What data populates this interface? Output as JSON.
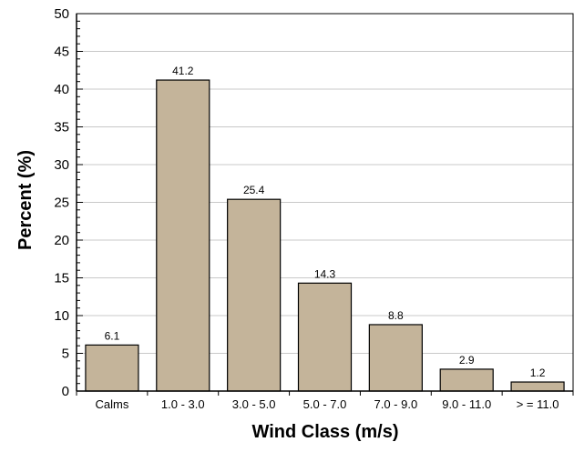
{
  "chart_data": {
    "type": "bar",
    "title": "",
    "xlabel": "Wind Class (m/s)",
    "ylabel": "Percent (%)",
    "categories": [
      "Calms",
      "1.0 - 3.0",
      "3.0 - 5.0",
      "5.0 - 7.0",
      "7.0 - 9.0",
      "9.0 - 11.0",
      "> = 11.0"
    ],
    "values": [
      6.1,
      41.2,
      25.4,
      14.3,
      8.8,
      2.9,
      1.2
    ],
    "data_labels": [
      "6.1",
      "41.2",
      "25.4",
      "14.3",
      "8.8",
      "2.9",
      "1.2"
    ],
    "ylim": [
      0,
      50
    ],
    "yticks": [
      0,
      5,
      10,
      15,
      20,
      25,
      30,
      35,
      40,
      45,
      50
    ],
    "ytick_labels": [
      "0",
      "5",
      "10",
      "15",
      "20",
      "25",
      "30",
      "35",
      "40",
      "45",
      "50"
    ],
    "grid": true,
    "legend": "none",
    "colors": {
      "bar_fill": "#c4b49a",
      "bar_stroke": "#000000",
      "grid": "#c8c8c8",
      "axis": "#000000"
    }
  }
}
